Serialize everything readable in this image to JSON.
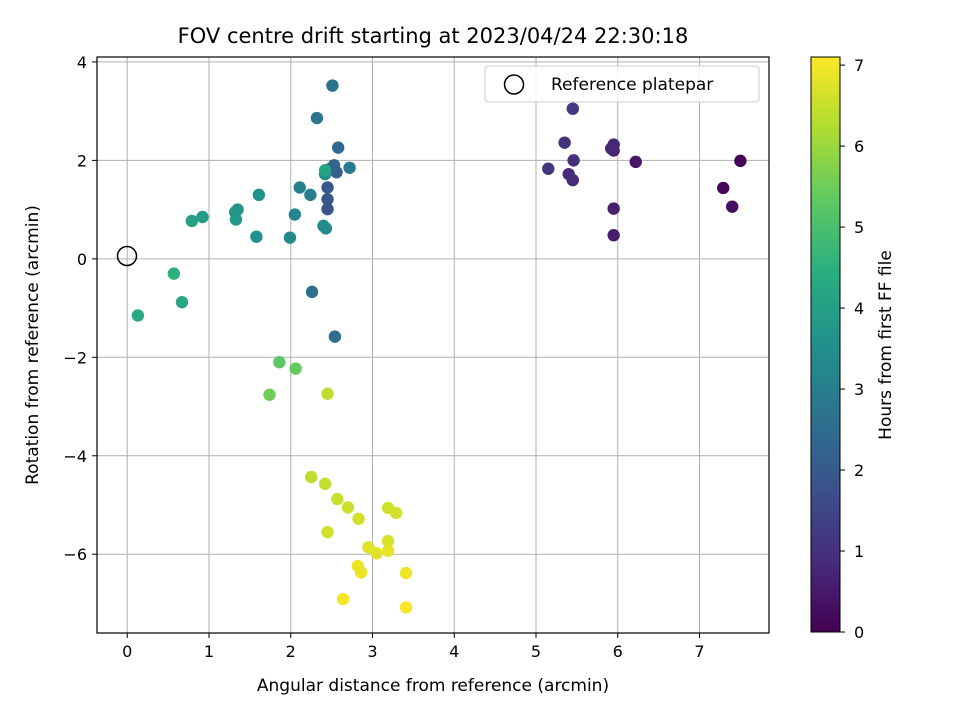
{
  "chart_data": {
    "type": "scatter",
    "title": "FOV centre drift starting at 2023/04/24 22:30:18",
    "xlabel": "Angular distance from reference (arcmin)",
    "ylabel": "Rotation from reference (arcmin)",
    "xlim": [
      -0.37,
      7.85
    ],
    "ylim": [
      -7.6,
      4.1
    ],
    "xticks": [
      0,
      1,
      2,
      3,
      4,
      5,
      6,
      7
    ],
    "yticks": [
      -6,
      -4,
      -2,
      0,
      2,
      4
    ],
    "grid": true,
    "legend": {
      "position": "top-right",
      "entries": [
        "Reference platepar"
      ]
    },
    "reference_point": {
      "x": 0,
      "y": 0
    },
    "colorbar": {
      "label": "Hours from first FF file",
      "colormap": "viridis",
      "range": [
        0,
        7.1
      ],
      "ticks": [
        0,
        1,
        2,
        3,
        4,
        5,
        6,
        7
      ]
    },
    "points": [
      {
        "x": 7.5,
        "y": 1.99,
        "c": 0.05
      },
      {
        "x": 7.29,
        "y": 1.44,
        "c": 0.15
      },
      {
        "x": 7.4,
        "y": 1.06,
        "c": 0.25
      },
      {
        "x": 6.22,
        "y": 1.97,
        "c": 0.4
      },
      {
        "x": 5.95,
        "y": 0.48,
        "c": 0.55
      },
      {
        "x": 5.95,
        "y": 1.02,
        "c": 0.6
      },
      {
        "x": 5.95,
        "y": 2.2,
        "c": 0.7
      },
      {
        "x": 5.92,
        "y": 2.24,
        "c": 0.75
      },
      {
        "x": 5.95,
        "y": 2.32,
        "c": 0.8
      },
      {
        "x": 5.45,
        "y": 1.6,
        "c": 0.85
      },
      {
        "x": 5.4,
        "y": 1.72,
        "c": 0.9
      },
      {
        "x": 5.46,
        "y": 2.0,
        "c": 0.95
      },
      {
        "x": 5.35,
        "y": 2.36,
        "c": 1.0
      },
      {
        "x": 5.15,
        "y": 1.83,
        "c": 1.05
      },
      {
        "x": 5.45,
        "y": 3.05,
        "c": 1.1
      },
      {
        "x": 2.45,
        "y": 1.01,
        "c": 1.8
      },
      {
        "x": 2.45,
        "y": 1.21,
        "c": 1.9
      },
      {
        "x": 2.45,
        "y": 1.45,
        "c": 2.0
      },
      {
        "x": 2.56,
        "y": 1.76,
        "c": 2.1
      },
      {
        "x": 2.47,
        "y": 1.82,
        "c": 2.2
      },
      {
        "x": 2.53,
        "y": 1.9,
        "c": 2.3
      },
      {
        "x": 2.58,
        "y": 2.26,
        "c": 2.4
      },
      {
        "x": 2.54,
        "y": -1.58,
        "c": 2.5
      },
      {
        "x": 2.26,
        "y": -0.67,
        "c": 2.6
      },
      {
        "x": 2.51,
        "y": 3.52,
        "c": 2.7
      },
      {
        "x": 2.32,
        "y": 2.86,
        "c": 2.8
      },
      {
        "x": 2.72,
        "y": 1.85,
        "c": 2.9
      },
      {
        "x": 2.24,
        "y": 1.3,
        "c": 3.0
      },
      {
        "x": 2.11,
        "y": 1.45,
        "c": 3.1
      },
      {
        "x": 2.05,
        "y": 0.9,
        "c": 3.2
      },
      {
        "x": 1.99,
        "y": 0.43,
        "c": 3.3
      },
      {
        "x": 2.43,
        "y": 0.62,
        "c": 3.35
      },
      {
        "x": 2.4,
        "y": 0.67,
        "c": 3.4
      },
      {
        "x": 2.42,
        "y": 1.72,
        "c": 3.5
      },
      {
        "x": 1.61,
        "y": 1.3,
        "c": 3.55
      },
      {
        "x": 1.58,
        "y": 0.45,
        "c": 3.6
      },
      {
        "x": 1.35,
        "y": 1.0,
        "c": 3.65
      },
      {
        "x": 1.32,
        "y": 0.95,
        "c": 3.7
      },
      {
        "x": 1.33,
        "y": 0.8,
        "c": 3.75
      },
      {
        "x": 0.92,
        "y": 0.85,
        "c": 3.9
      },
      {
        "x": 0.79,
        "y": 0.77,
        "c": 4.0
      },
      {
        "x": 2.42,
        "y": 1.8,
        "c": 4.1
      },
      {
        "x": 0.67,
        "y": -0.88,
        "c": 4.2
      },
      {
        "x": 0.13,
        "y": -1.15,
        "c": 4.3
      },
      {
        "x": 0.57,
        "y": -0.3,
        "c": 4.5
      },
      {
        "x": 1.86,
        "y": -2.1,
        "c": 5.3
      },
      {
        "x": 2.06,
        "y": -2.23,
        "c": 5.4
      },
      {
        "x": 1.74,
        "y": -2.76,
        "c": 5.5
      },
      {
        "x": 2.45,
        "y": -2.74,
        "c": 6.4
      },
      {
        "x": 2.25,
        "y": -4.43,
        "c": 6.4
      },
      {
        "x": 2.42,
        "y": -4.57,
        "c": 6.45
      },
      {
        "x": 2.57,
        "y": -4.88,
        "c": 6.5
      },
      {
        "x": 2.7,
        "y": -5.05,
        "c": 6.55
      },
      {
        "x": 2.83,
        "y": -5.28,
        "c": 6.6
      },
      {
        "x": 2.45,
        "y": -5.55,
        "c": 6.6
      },
      {
        "x": 3.19,
        "y": -5.06,
        "c": 6.6
      },
      {
        "x": 3.29,
        "y": -5.16,
        "c": 6.65
      },
      {
        "x": 3.19,
        "y": -5.73,
        "c": 6.7
      },
      {
        "x": 2.95,
        "y": -5.86,
        "c": 6.75
      },
      {
        "x": 3.05,
        "y": -5.98,
        "c": 6.8
      },
      {
        "x": 3.19,
        "y": -5.93,
        "c": 6.85
      },
      {
        "x": 2.82,
        "y": -6.24,
        "c": 6.9
      },
      {
        "x": 2.86,
        "y": -6.37,
        "c": 6.9
      },
      {
        "x": 3.41,
        "y": -6.38,
        "c": 6.95
      },
      {
        "x": 2.64,
        "y": -6.91,
        "c": 7.0
      },
      {
        "x": 3.41,
        "y": -7.08,
        "c": 7.05
      }
    ]
  }
}
